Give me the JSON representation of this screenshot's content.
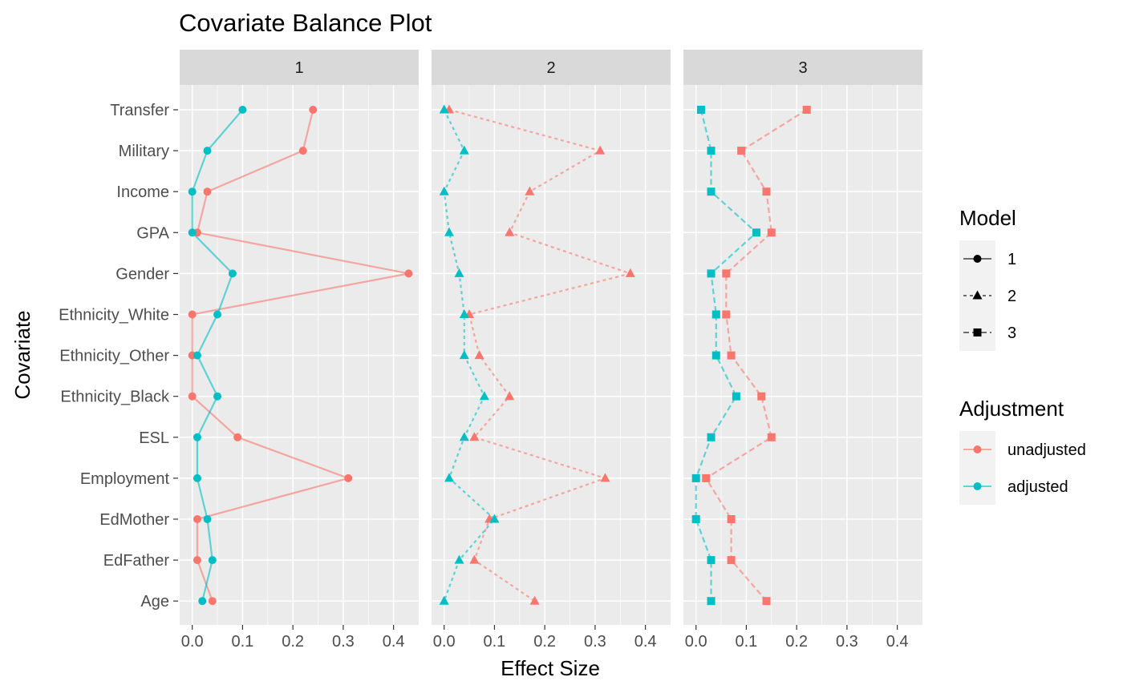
{
  "chart_data": {
    "type": "scatter",
    "title": "Covariate Balance Plot",
    "xlabel": "Effect Size",
    "ylabel": "Covariate",
    "xlim": [
      -0.025,
      0.45
    ],
    "x_ticks": [
      0,
      0.1,
      0.2,
      0.3,
      0.4
    ],
    "x_tick_labels": [
      "0.0",
      "0.1",
      "0.2",
      "0.3",
      "0.4"
    ],
    "categories": [
      "Transfer",
      "Military",
      "Income",
      "GPA",
      "Gender",
      "Ethnicity_White",
      "Ethnicity_Other",
      "Ethnicity_Black",
      "ESL",
      "Employment",
      "EdMother",
      "EdFather",
      "Age"
    ],
    "grid": true,
    "legend_position": "right",
    "colors": {
      "unadjusted": "#F8766D",
      "adjusted": "#00BFC4",
      "panel_bg": "#EBEBEB",
      "strip_bg": "#D9D9D9",
      "grid": "#FFFFFF"
    },
    "panels": [
      {
        "label": "1",
        "series": [
          {
            "name": "unadjusted",
            "values": [
              0.24,
              0.22,
              0.03,
              0.01,
              0.43,
              0.0,
              0.0,
              0.0,
              0.09,
              0.31,
              0.01,
              0.01,
              0.04
            ]
          },
          {
            "name": "adjusted",
            "values": [
              0.1,
              0.03,
              0.0,
              0.0,
              0.08,
              0.05,
              0.01,
              0.05,
              0.01,
              0.01,
              0.03,
              0.04,
              0.02
            ]
          }
        ]
      },
      {
        "label": "2",
        "series": [
          {
            "name": "unadjusted",
            "values": [
              0.01,
              0.31,
              0.17,
              0.13,
              0.37,
              0.05,
              0.07,
              0.13,
              0.06,
              0.32,
              0.09,
              0.06,
              0.18
            ]
          },
          {
            "name": "adjusted",
            "values": [
              0.0,
              0.04,
              0.0,
              0.01,
              0.03,
              0.04,
              0.04,
              0.08,
              0.04,
              0.01,
              0.1,
              0.03,
              0.0
            ]
          }
        ]
      },
      {
        "label": "3",
        "series": [
          {
            "name": "unadjusted",
            "values": [
              0.22,
              0.09,
              0.14,
              0.15,
              0.06,
              0.06,
              0.07,
              0.13,
              0.15,
              0.02,
              0.07,
              0.07,
              0.14
            ]
          },
          {
            "name": "adjusted",
            "values": [
              0.01,
              0.03,
              0.03,
              0.12,
              0.03,
              0.04,
              0.04,
              0.08,
              0.03,
              0.0,
              0.0,
              0.03,
              0.03
            ]
          }
        ]
      }
    ],
    "legends": [
      {
        "title": "Model",
        "entries": [
          {
            "label": "1",
            "shape": "circle",
            "line": "solid"
          },
          {
            "label": "2",
            "shape": "triangle",
            "line": "dotted"
          },
          {
            "label": "3",
            "shape": "square",
            "line": "dashed"
          }
        ]
      },
      {
        "title": "Adjustment",
        "entries": [
          {
            "label": "unadjusted",
            "color": "#F8766D"
          },
          {
            "label": "adjusted",
            "color": "#00BFC4"
          }
        ]
      }
    ]
  }
}
